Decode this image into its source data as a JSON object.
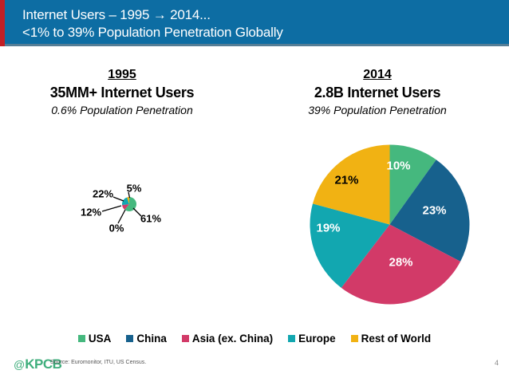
{
  "header": {
    "line1": "Internet Users – 1995 → 2014...",
    "line2": "<1% to 39% Population Penetration Globally",
    "bg_color": "#0d6da3",
    "accent_color": "#c22026",
    "text_color": "#ffffff"
  },
  "panels": {
    "left": {
      "year": "1995",
      "headline": "35MM+ Internet Users",
      "subline": "0.6% Population Penetration"
    },
    "right": {
      "year": "2014",
      "headline": "2.8B Internet Users",
      "subline": "39% Population Penetration"
    }
  },
  "legend": {
    "items": [
      {
        "label": "USA",
        "color": "#45b87e"
      },
      {
        "label": "China",
        "color": "#17618d"
      },
      {
        "label": "Asia (ex. China)",
        "color": "#d23a68"
      },
      {
        "label": "Europe",
        "color": "#12a7b0"
      },
      {
        "label": "Rest of World",
        "color": "#f1b213"
      }
    ]
  },
  "chart_data": [
    {
      "type": "pie",
      "title": "1995",
      "subtitle": "35MM+ Internet Users",
      "note": "0.6% Population Penetration",
      "categories": [
        "USA",
        "China",
        "Asia (ex. China)",
        "Europe",
        "Rest of World"
      ],
      "values": [
        61,
        0,
        12,
        22,
        5
      ],
      "labels": [
        "61%",
        "0%",
        "12%",
        "22%",
        "5%"
      ],
      "colors": [
        "#45b87e",
        "#17618d",
        "#d23a68",
        "#12a7b0",
        "#f1b213"
      ],
      "label_style": "outside-with-leader-lines",
      "legend_position": "bottom-shared"
    },
    {
      "type": "pie",
      "title": "2014",
      "subtitle": "2.8B Internet Users",
      "note": "39% Population Penetration",
      "categories": [
        "USA",
        "China",
        "Asia (ex. China)",
        "Europe",
        "Rest of World"
      ],
      "values": [
        10,
        23,
        28,
        19,
        21
      ],
      "labels": [
        "10%",
        "23%",
        "28%",
        "19%",
        "21%"
      ],
      "colors": [
        "#45b87e",
        "#17618d",
        "#d23a68",
        "#12a7b0",
        "#f1b213"
      ],
      "label_colors": [
        "#ffffff",
        "#ffffff",
        "#ffffff",
        "#ffffff",
        "#000000"
      ],
      "label_style": "inside",
      "legend_position": "bottom-shared"
    }
  ],
  "footer": {
    "logo_at": "@",
    "logo_text": "KPCB",
    "logo_color": "#3fae7c",
    "source": "Source: Euromonitor, ITU, US Census.",
    "page_number": "4"
  }
}
